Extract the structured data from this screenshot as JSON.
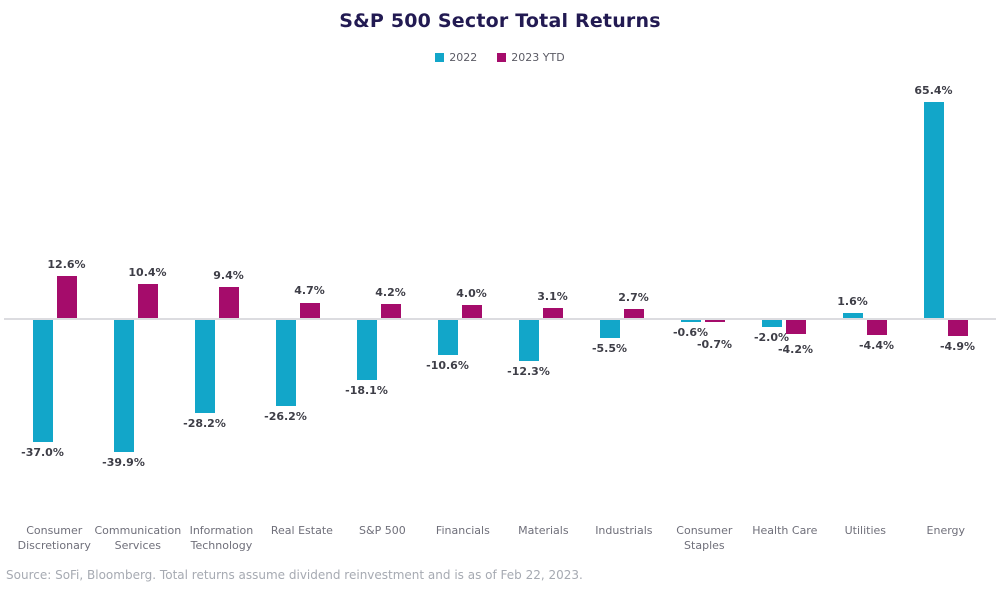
{
  "chart_data": {
    "type": "bar",
    "title": "S&P 500 Sector Total Returns",
    "categories": [
      "Consumer Discretionary",
      "Communication Services",
      "Information Technology",
      "Real Estate",
      "S&P 500",
      "Financials",
      "Materials",
      "Industrials",
      "Consumer Staples",
      "Health Care",
      "Utilities",
      "Energy"
    ],
    "series": [
      {
        "name": "2022",
        "color": "#12a6c9",
        "values": [
          -37.0,
          -39.9,
          -28.2,
          -26.2,
          -18.1,
          -10.6,
          -12.3,
          -5.5,
          -0.6,
          -2.0,
          1.6,
          65.4
        ]
      },
      {
        "name": "2023 YTD",
        "color": "#a50c6b",
        "values": [
          12.6,
          10.4,
          9.4,
          4.7,
          4.2,
          4.0,
          3.1,
          2.7,
          -0.7,
          -4.2,
          -4.4,
          -4.9
        ]
      }
    ],
    "value_label_format": "percent_one_decimal",
    "ylim": [
      -45,
      70
    ],
    "grid": false,
    "legend_position": "top",
    "source_note": "Source: SoFi, Bloomberg. Total returns assume dividend reinvestment and is as of Feb 22, 2023."
  }
}
